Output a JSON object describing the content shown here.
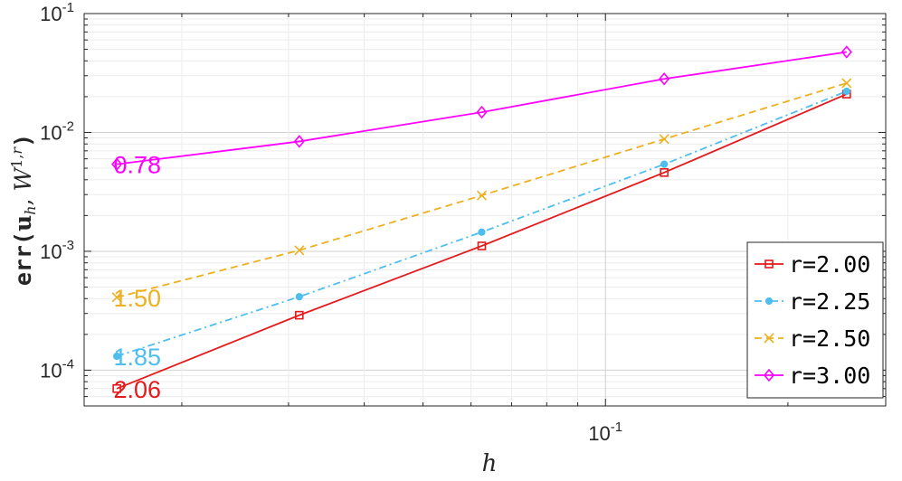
{
  "chart_data": {
    "type": "line",
    "title": "",
    "xlabel": "h",
    "ylabel": "err(u_h, W^{1,r})",
    "x_scale": "log",
    "y_scale": "log",
    "xlim": [
      0.0138,
      0.29
    ],
    "ylim": [
      5e-05,
      0.1
    ],
    "grid": true,
    "legend_position": "bottom-right",
    "x_ticks": [
      {
        "base": "10",
        "exp": "-1",
        "value": 0.1
      }
    ],
    "y_ticks": [
      {
        "base": "10",
        "exp": "-4",
        "value": 0.0001
      },
      {
        "base": "10",
        "exp": "-3",
        "value": 0.001
      },
      {
        "base": "10",
        "exp": "-2",
        "value": 0.01
      },
      {
        "base": "10",
        "exp": "-1",
        "value": 0.1
      }
    ],
    "x": [
      0.015625,
      0.03125,
      0.0625,
      0.125,
      0.25
    ],
    "series": [
      {
        "name": "r=2.00",
        "color": "#e41a1c",
        "dash": "solid",
        "marker": "square",
        "slope_label": "2.06",
        "values": [
          7e-05,
          0.00029,
          0.00111,
          0.0046,
          0.021
        ]
      },
      {
        "name": "r=2.25",
        "color": "#4dbeee",
        "dash": "dashdot",
        "marker": "dot",
        "slope_label": "1.85",
        "values": [
          0.000131,
          0.000415,
          0.00145,
          0.0054,
          0.0222
        ]
      },
      {
        "name": "r=2.50",
        "color": "#edb120",
        "dash": "dashed",
        "marker": "x",
        "slope_label": "1.50",
        "values": [
          0.00041,
          0.00102,
          0.00295,
          0.0088,
          0.026
        ]
      },
      {
        "name": "r=3.00",
        "color": "#ff00ff",
        "dash": "solid",
        "marker": "diamond",
        "slope_label": "0.78",
        "values": [
          0.0054,
          0.0084,
          0.0148,
          0.0282,
          0.0475
        ]
      }
    ]
  }
}
